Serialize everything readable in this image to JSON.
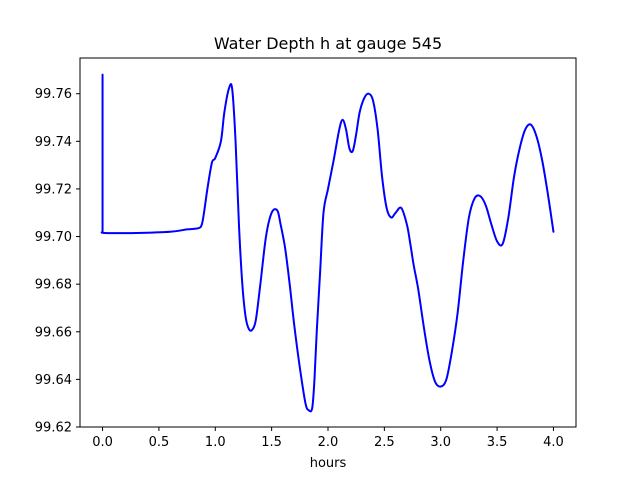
{
  "chart_data": {
    "type": "line",
    "title": "Water Depth h at gauge 545",
    "xlabel": "hours",
    "ylabel": "",
    "xlim": [
      -0.2,
      4.2
    ],
    "ylim": [
      99.62,
      99.775
    ],
    "xticks": [
      0.0,
      0.5,
      1.0,
      1.5,
      2.0,
      2.5,
      3.0,
      3.5,
      4.0
    ],
    "xtick_labels": [
      "0.0",
      "0.5",
      "1.0",
      "1.5",
      "2.0",
      "2.5",
      "3.0",
      "3.5",
      "4.0"
    ],
    "yticks": [
      99.62,
      99.64,
      99.66,
      99.68,
      99.7,
      99.72,
      99.74,
      99.76
    ],
    "ytick_labels": [
      "99.62",
      "99.64",
      "99.66",
      "99.68",
      "99.70",
      "99.72",
      "99.74",
      "99.76"
    ],
    "grid": false,
    "series": [
      {
        "color": "#0000ff",
        "x": [
          0.0,
          0.0,
          0.02,
          0.3,
          0.6,
          0.75,
          0.85,
          0.88,
          0.9,
          0.93,
          0.97,
          1.0,
          1.05,
          1.08,
          1.12,
          1.15,
          1.18,
          1.21,
          1.24,
          1.27,
          1.3,
          1.33,
          1.36,
          1.4,
          1.45,
          1.5,
          1.55,
          1.58,
          1.62,
          1.66,
          1.7,
          1.75,
          1.8,
          1.83,
          1.86,
          1.88,
          1.9,
          1.93,
          1.96,
          2.0,
          2.05,
          2.1,
          2.13,
          2.16,
          2.19,
          2.22,
          2.25,
          2.28,
          2.32,
          2.36,
          2.4,
          2.44,
          2.48,
          2.52,
          2.56,
          2.6,
          2.65,
          2.7,
          2.73,
          2.76,
          2.8,
          2.85,
          2.9,
          2.95,
          3.0,
          3.05,
          3.1,
          3.15,
          3.2,
          3.25,
          3.3,
          3.35,
          3.4,
          3.45,
          3.5,
          3.55,
          3.6,
          3.65,
          3.7,
          3.75,
          3.8,
          3.85,
          3.9,
          3.95,
          4.0
        ],
        "values": [
          99.768,
          99.702,
          99.7015,
          99.7015,
          99.702,
          99.703,
          99.7035,
          99.705,
          99.71,
          99.72,
          99.731,
          99.733,
          99.74,
          99.752,
          99.762,
          99.762,
          99.74,
          99.705,
          99.68,
          99.666,
          99.661,
          99.661,
          99.665,
          99.68,
          99.7,
          99.71,
          99.711,
          99.705,
          99.695,
          99.68,
          99.663,
          99.645,
          99.63,
          99.627,
          99.628,
          99.64,
          99.66,
          99.685,
          99.71,
          99.72,
          99.732,
          99.745,
          99.749,
          99.745,
          99.737,
          99.736,
          99.743,
          99.752,
          99.758,
          99.76,
          99.757,
          99.745,
          99.725,
          99.712,
          99.708,
          99.71,
          99.712,
          99.705,
          99.697,
          99.688,
          99.678,
          99.662,
          99.648,
          99.639,
          99.637,
          99.64,
          99.652,
          99.668,
          99.69,
          99.708,
          99.716,
          99.717,
          99.713,
          99.705,
          99.698,
          99.697,
          99.708,
          99.725,
          99.737,
          99.745,
          99.747,
          99.742,
          99.732,
          99.718,
          99.702
        ]
      }
    ]
  }
}
